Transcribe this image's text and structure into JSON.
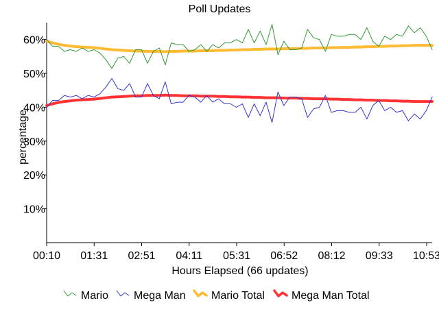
{
  "chart_data": {
    "type": "line",
    "title": "Poll Updates",
    "xlabel": "Hours Elapsed (66 updates)",
    "ylabel": "percentage",
    "x_ticks": [
      "00:10",
      "01:31",
      "02:51",
      "04:11",
      "05:31",
      "06:52",
      "08:12",
      "09:33",
      "10:53"
    ],
    "y_ticks": [
      "10%",
      "20%",
      "30%",
      "40%",
      "50%",
      "60%"
    ],
    "y_tick_values": [
      10,
      20,
      30,
      40,
      50,
      60
    ],
    "ylim": [
      0,
      65
    ],
    "grid": false,
    "legend_position": "bottom",
    "series": [
      {
        "name": "Mario",
        "color": "#339933",
        "values": [
          60.0,
          58.0,
          58.0,
          56.5,
          57.0,
          56.5,
          57.5,
          56.5,
          57.0,
          56.0,
          54.0,
          51.5,
          54.5,
          55.0,
          53.0,
          57.0,
          57.0,
          53.0,
          56.5,
          57.5,
          52.5,
          59.0,
          58.5,
          58.5,
          56.5,
          57.0,
          58.5,
          56.5,
          58.5,
          57.5,
          59.0,
          59.0,
          60.0,
          59.0,
          63.0,
          59.0,
          62.5,
          58.5,
          64.5,
          55.5,
          59.5,
          57.0,
          57.0,
          57.5,
          63.0,
          60.5,
          60.0,
          56.5,
          61.5,
          61.0,
          61.0,
          61.5,
          61.5,
          60.0,
          63.5,
          59.5,
          58.0,
          61.0,
          60.0,
          61.5,
          61.0,
          64.0,
          62.0,
          63.5,
          61.0,
          57.0
        ]
      },
      {
        "name": "Mega Man",
        "color": "#3333cc",
        "values": [
          40.0,
          42.0,
          42.0,
          43.5,
          43.0,
          43.5,
          42.5,
          43.5,
          43.0,
          44.0,
          46.0,
          48.5,
          45.5,
          45.0,
          47.0,
          43.0,
          43.0,
          47.0,
          43.5,
          42.5,
          47.5,
          41.0,
          41.5,
          41.5,
          43.5,
          43.0,
          41.5,
          43.5,
          41.5,
          42.5,
          41.0,
          41.0,
          40.0,
          41.0,
          37.0,
          41.0,
          37.5,
          41.5,
          35.5,
          44.5,
          40.5,
          43.0,
          43.0,
          42.5,
          37.0,
          39.5,
          40.0,
          43.5,
          38.5,
          39.0,
          39.0,
          38.5,
          38.5,
          40.0,
          36.5,
          40.5,
          42.0,
          39.0,
          40.0,
          38.5,
          39.0,
          36.0,
          38.0,
          36.5,
          39.0,
          43.0
        ]
      },
      {
        "name": "Mario Total",
        "color": "#ffbb33",
        "values": [
          59.5,
          59.0,
          58.6,
          58.3,
          58.1,
          57.9,
          57.8,
          57.7,
          57.6,
          57.4,
          57.2,
          57.0,
          56.9,
          56.8,
          56.7,
          56.6,
          56.6,
          56.5,
          56.5,
          56.5,
          56.4,
          56.5,
          56.5,
          56.6,
          56.6,
          56.6,
          56.7,
          56.7,
          56.7,
          56.8,
          56.8,
          56.9,
          56.9,
          57.0,
          57.0,
          57.1,
          57.1,
          57.2,
          57.2,
          57.2,
          57.3,
          57.3,
          57.3,
          57.4,
          57.4,
          57.5,
          57.5,
          57.5,
          57.6,
          57.6,
          57.7,
          57.7,
          57.8,
          57.8,
          57.9,
          57.9,
          58.0,
          58.0,
          58.1,
          58.1,
          58.2,
          58.2,
          58.3,
          58.3,
          58.3,
          58.3
        ]
      },
      {
        "name": "Mega Man Total",
        "color": "#ff3333",
        "values": [
          40.5,
          41.0,
          41.4,
          41.7,
          41.9,
          42.1,
          42.2,
          42.3,
          42.4,
          42.6,
          42.8,
          43.0,
          43.1,
          43.2,
          43.3,
          43.4,
          43.4,
          43.5,
          43.5,
          43.5,
          43.6,
          43.5,
          43.5,
          43.4,
          43.4,
          43.4,
          43.3,
          43.3,
          43.3,
          43.2,
          43.2,
          43.1,
          43.1,
          43.0,
          43.0,
          42.9,
          42.9,
          42.8,
          42.8,
          42.8,
          42.7,
          42.7,
          42.7,
          42.6,
          42.6,
          42.5,
          42.5,
          42.5,
          42.4,
          42.4,
          42.3,
          42.3,
          42.2,
          42.2,
          42.1,
          42.1,
          42.0,
          42.0,
          41.9,
          41.9,
          41.8,
          41.8,
          41.7,
          41.7,
          41.7,
          41.7
        ]
      }
    ]
  }
}
